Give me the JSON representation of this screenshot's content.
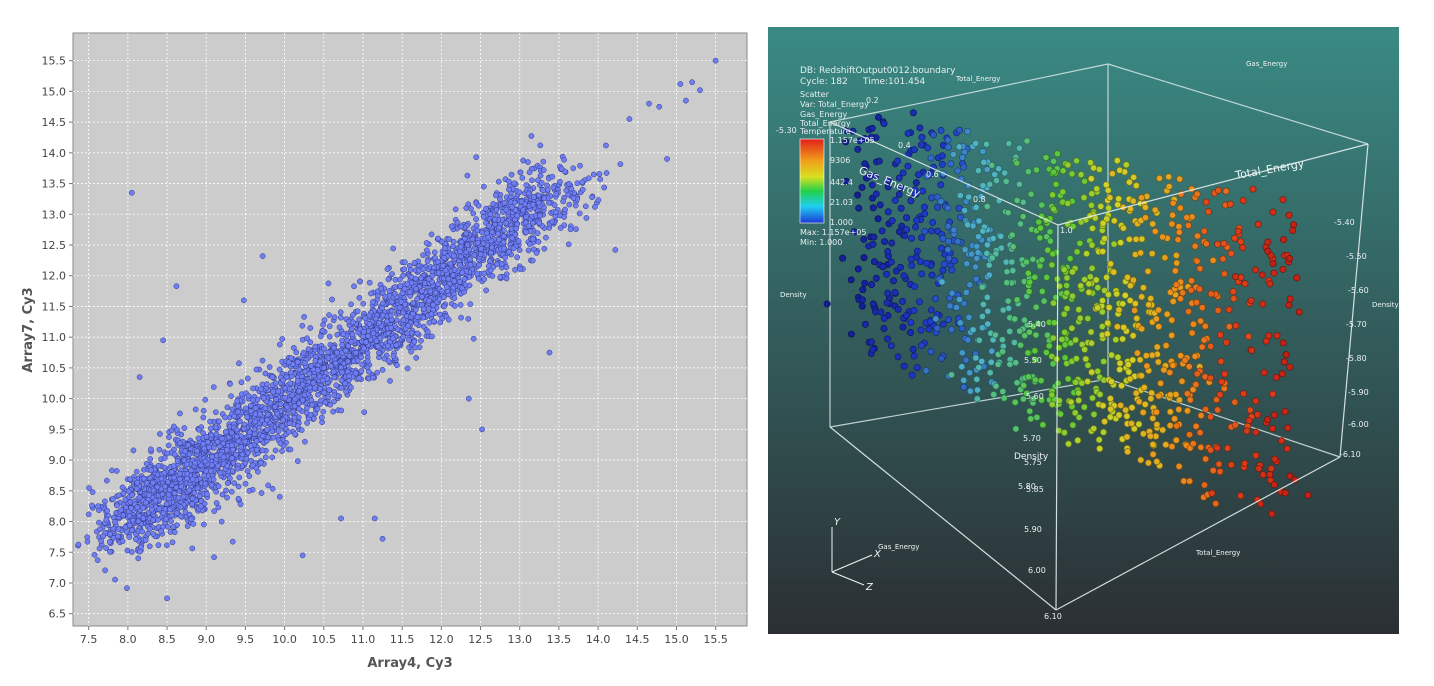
{
  "chart_data": [
    {
      "type": "scatter",
      "title": "",
      "xlabel": "Array4, Cy3",
      "ylabel": "Array7, Cy3",
      "xlim": [
        7.3,
        15.9
      ],
      "ylim": [
        6.3,
        15.95
      ],
      "xticks": [
        "7.5",
        "8.0",
        "8.5",
        "9.0",
        "9.5",
        "10.0",
        "10.5",
        "11.0",
        "11.5",
        "12.0",
        "12.5",
        "13.0",
        "13.5",
        "14.0",
        "14.5",
        "15.0",
        "15.5"
      ],
      "yticks": [
        "6.5",
        "7.0",
        "7.5",
        "8.0",
        "8.5",
        "9.0",
        "9.5",
        "10.0",
        "10.5",
        "11.0",
        "11.5",
        "12.0",
        "12.5",
        "13.0",
        "13.5",
        "14.0",
        "14.5",
        "15.0",
        "15.5"
      ],
      "grid": true,
      "point_color": "#6f7ef2",
      "point_edge": "#2c3480",
      "background": "#cccccc",
      "cloud": {
        "x_center_start": 8.0,
        "x_center_end": 13.5,
        "slope": 1.0,
        "spread": 0.3,
        "count": 3200
      },
      "outliers": [
        {
          "x": 8.05,
          "y": 13.35
        },
        {
          "x": 8.5,
          "y": 6.75
        },
        {
          "x": 7.62,
          "y": 8.25
        },
        {
          "x": 9.1,
          "y": 7.42
        },
        {
          "x": 9.48,
          "y": 11.6
        },
        {
          "x": 9.72,
          "y": 12.32
        },
        {
          "x": 8.62,
          "y": 11.83
        },
        {
          "x": 10.23,
          "y": 7.45
        },
        {
          "x": 11.25,
          "y": 7.72
        },
        {
          "x": 13.38,
          "y": 10.75
        },
        {
          "x": 14.22,
          "y": 12.42
        },
        {
          "x": 12.35,
          "y": 10.0
        },
        {
          "x": 12.52,
          "y": 9.5
        },
        {
          "x": 11.15,
          "y": 8.05
        },
        {
          "x": 10.72,
          "y": 8.05
        },
        {
          "x": 9.55,
          "y": 8.5
        },
        {
          "x": 14.88,
          "y": 13.9
        },
        {
          "x": 15.5,
          "y": 15.5
        },
        {
          "x": 15.3,
          "y": 15.02
        },
        {
          "x": 15.2,
          "y": 15.15
        },
        {
          "x": 15.05,
          "y": 15.12
        },
        {
          "x": 14.65,
          "y": 14.8
        },
        {
          "x": 14.78,
          "y": 14.75
        },
        {
          "x": 14.4,
          "y": 14.55
        },
        {
          "x": 15.12,
          "y": 14.85
        },
        {
          "x": 14.1,
          "y": 14.12
        },
        {
          "x": 8.15,
          "y": 10.35
        },
        {
          "x": 8.45,
          "y": 10.95
        }
      ]
    },
    {
      "type": "scatter",
      "subtype": "3d-scatter",
      "background_top": "#3a8a84",
      "background_bottom": "#2b2f33",
      "header": {
        "db": "DB: RedshiftOutput0012.boundary",
        "cycle": "Cycle: 182",
        "time": "Time:101.454",
        "plot": "Scatter",
        "var": "Var: Total_Energy",
        "extra1": "Gas_Energy",
        "extra2": "Total_Energy",
        "extra3": "Temperature"
      },
      "legend": {
        "values": [
          "1.157e+05",
          "9306",
          "442.4",
          "21.03",
          "1.000"
        ],
        "max": "Max: 1.157e+05",
        "min": "Min: 1.000",
        "colors": [
          "#e0201a",
          "#f29a1a",
          "#d8e020",
          "#22d04a",
          "#20d0f0",
          "#1a3ad8"
        ]
      },
      "axis_titles": [
        "Gas_Energy",
        "Total_Energy",
        "Density"
      ],
      "tick_labels": [
        "0.2",
        "0.4",
        "0.6",
        "0.8",
        "1.0",
        "-5.30",
        "-5.40",
        "-5.50",
        "-5.60",
        "-5.70",
        "-5.80",
        "-5.90",
        "-6.00",
        "-6.10",
        "5.80",
        "5.75",
        "5.70",
        "5.40",
        "5.50",
        "5.60",
        "5.85",
        "5.90",
        "6.00",
        "6.10"
      ],
      "triad": [
        "Y",
        "X",
        "Z"
      ],
      "points": 2600
    }
  ]
}
